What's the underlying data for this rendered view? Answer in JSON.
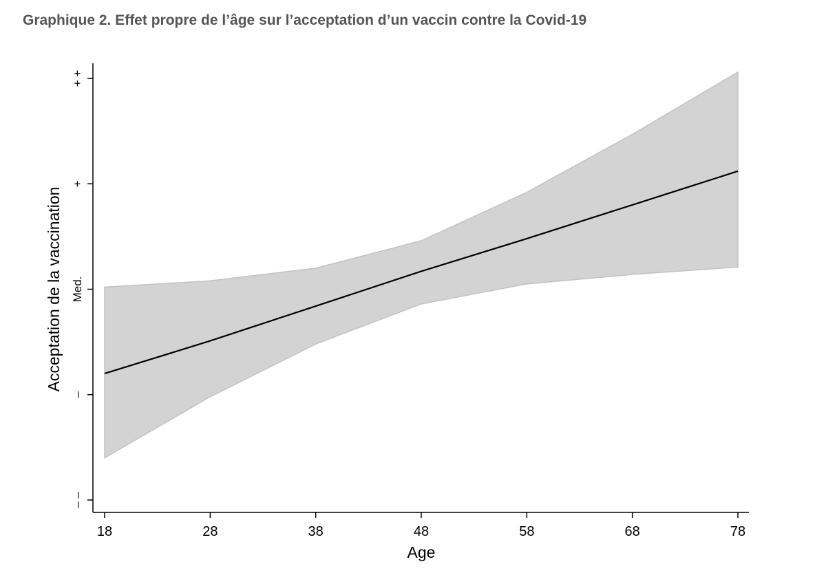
{
  "figure": {
    "title": "Graphique 2. Effet propre de l’âge sur l’acceptation d’un vaccin contre la Covid-19"
  },
  "chart_data": {
    "type": "line",
    "title": "Graphique 2. Effet propre de l’âge sur l’acceptation d’un vaccin contre la Covid-19",
    "xlabel": "Age",
    "ylabel": "Acceptation de la vaccination",
    "x": [
      18,
      28,
      38,
      48,
      58,
      68,
      78
    ],
    "xlim": [
      18,
      78
    ],
    "y_ticks": [
      {
        "value": -2,
        "label": "– –"
      },
      {
        "value": -1,
        "label": "–"
      },
      {
        "value": 0,
        "label": "Med."
      },
      {
        "value": 1,
        "label": "+"
      },
      {
        "value": 2,
        "label": "+ +"
      }
    ],
    "ylim": [
      -2,
      2
    ],
    "series": [
      {
        "type": "line",
        "values": [
          -0.8,
          -0.49,
          -0.16,
          0.17,
          0.48,
          0.8,
          1.12
        ],
        "color": "#000000"
      },
      {
        "type": "confidence-band",
        "upper": [
          0.02,
          0.08,
          0.2,
          0.46,
          0.92,
          1.47,
          2.06
        ],
        "lower": [
          -1.6,
          -1.02,
          -0.52,
          -0.14,
          0.05,
          0.14,
          0.21
        ],
        "color": "#d3d3d3"
      }
    ],
    "grid": false,
    "legend": "none"
  }
}
